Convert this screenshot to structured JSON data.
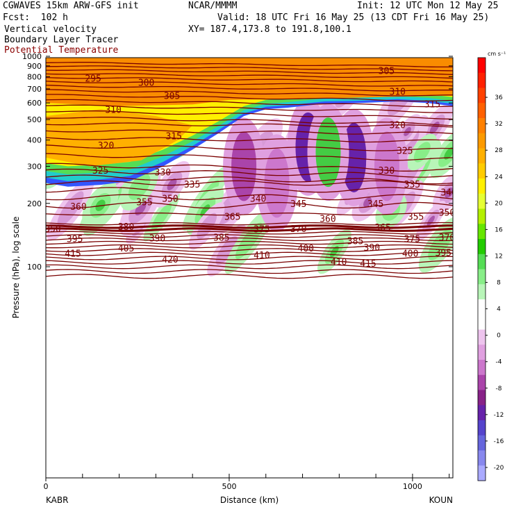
{
  "header": {
    "title_left": "CGWAVES 15km ARW-GFS init",
    "forecast": "Fcst:  102 h",
    "source": "NCAR/MMMM",
    "init": "Init: 12 UTC Mon 12 May 25",
    "valid": "Valid: 18 UTC Fri 16 May 25 (13 CDT Fri 16 May 25)",
    "xy": "XY= 187.4,173.8 to 191.8,100.1",
    "field1": "Vertical velocity",
    "field2": "Boundary Layer Tracer",
    "field3": "Potential Temperature"
  },
  "colors": {
    "theta_contour": "#7a0000",
    "field3_text": "#8b0000",
    "terrain_fill": "#f98c00"
  },
  "chart_data": {
    "type": "heatmap",
    "title": "CGWAVES 15km ARW-GFS init",
    "xlabel": "Distance (km)",
    "ylabel": "Pressure (hPa), log scale",
    "x_range": [
      0,
      1110
    ],
    "y_range_hpa": [
      1000,
      10
    ],
    "y_scale": "log",
    "x_ticks": [
      "0",
      "500",
      "1000"
    ],
    "x_tick_values": [
      0,
      500,
      1000
    ],
    "y_ticks": [
      "100",
      "200",
      "300",
      "400",
      "500",
      "600",
      "700",
      "800",
      "900",
      "1000"
    ],
    "y_tick_values": [
      100,
      200,
      300,
      400,
      500,
      600,
      700,
      800,
      900,
      1000
    ],
    "endpoints": {
      "left": "KABR",
      "right": "KOUN"
    },
    "colorbar": {
      "units": "cm s⁻¹",
      "labels": [
        "36",
        "32",
        "28",
        "24",
        "20",
        "16",
        "12",
        "8",
        "4",
        "0",
        "-4",
        "-8",
        "-12",
        "-16",
        "-20"
      ],
      "label_values": [
        36,
        32,
        28,
        24,
        20,
        16,
        12,
        8,
        4,
        0,
        -4,
        -8,
        -12,
        -16,
        -20
      ],
      "colors": [
        "#ff0000",
        "#ff2000",
        "#ff4000",
        "#ff6000",
        "#ff8000",
        "#fc9a00",
        "#ffb000",
        "#ffcc00",
        "#fff000",
        "#e6ff33",
        "#b4f000",
        "#66e600",
        "#22cc00",
        "#55dd55",
        "#88ee88",
        "#b8f5b8",
        "#ffffff",
        "#ffffff",
        "#eec4ee",
        "#e0a0e0",
        "#cc77cc",
        "#aa44aa",
        "#882288",
        "#6622aa",
        "#5544cc",
        "#6666dd",
        "#8888ee",
        "#aaaaff"
      ]
    },
    "contour_labels": [
      {
        "v": "415",
        "x": 55,
        "p": 115
      },
      {
        "v": "420",
        "x": 320,
        "p": 108
      },
      {
        "v": "410",
        "x": 570,
        "p": 113
      },
      {
        "v": "410",
        "x": 780,
        "p": 105
      },
      {
        "v": "415",
        "x": 860,
        "p": 103
      },
      {
        "v": "405",
        "x": 200,
        "p": 122
      },
      {
        "v": "400",
        "x": 690,
        "p": 122
      },
      {
        "v": "390",
        "x": 870,
        "p": 123
      },
      {
        "v": "400",
        "x": 975,
        "p": 115
      },
      {
        "v": "395",
        "x": 1065,
        "p": 116
      },
      {
        "v": "395",
        "x": 60,
        "p": 135
      },
      {
        "v": "390",
        "x": 285,
        "p": 136
      },
      {
        "v": "385",
        "x": 460,
        "p": 137
      },
      {
        "v": "385",
        "x": 825,
        "p": 132
      },
      {
        "v": "375",
        "x": 980,
        "p": 135
      },
      {
        "v": "370",
        "x": 1075,
        "p": 137
      },
      {
        "v": "380",
        "x": 200,
        "p": 154
      },
      {
        "v": "375",
        "x": 570,
        "p": 150
      },
      {
        "v": "370",
        "x": 670,
        "p": 151
      },
      {
        "v": "365",
        "x": 900,
        "p": 153
      },
      {
        "v": "350",
        "x": 0,
        "p": 151
      },
      {
        "v": "365",
        "x": 490,
        "p": 172
      },
      {
        "v": "360",
        "x": 750,
        "p": 168
      },
      {
        "v": "355",
        "x": 990,
        "p": 172
      },
      {
        "v": "350",
        "x": 1075,
        "p": 180
      },
      {
        "v": "360",
        "x": 70,
        "p": 192
      },
      {
        "v": "355",
        "x": 250,
        "p": 202
      },
      {
        "v": "350",
        "x": 320,
        "p": 210
      },
      {
        "v": "340",
        "x": 560,
        "p": 210
      },
      {
        "v": "345",
        "x": 670,
        "p": 198
      },
      {
        "v": "345",
        "x": 880,
        "p": 198
      },
      {
        "v": "340",
        "x": 1080,
        "p": 225
      },
      {
        "v": "335",
        "x": 380,
        "p": 245
      },
      {
        "v": "335",
        "x": 980,
        "p": 245
      },
      {
        "v": "325",
        "x": 130,
        "p": 285
      },
      {
        "v": "330",
        "x": 300,
        "p": 280
      },
      {
        "v": "330",
        "x": 910,
        "p": 285
      },
      {
        "v": "320",
        "x": 145,
        "p": 375
      },
      {
        "v": "325",
        "x": 960,
        "p": 355
      },
      {
        "v": "315",
        "x": 330,
        "p": 415
      },
      {
        "v": "320",
        "x": 940,
        "p": 470
      },
      {
        "v": "310",
        "x": 165,
        "p": 555
      },
      {
        "v": "315",
        "x": 1035,
        "p": 590
      },
      {
        "v": "305",
        "x": 325,
        "p": 645
      },
      {
        "v": "310",
        "x": 940,
        "p": 675
      },
      {
        "v": "295",
        "x": 110,
        "p": 780
      },
      {
        "v": "300",
        "x": 255,
        "p": 745
      },
      {
        "v": "305",
        "x": 910,
        "p": 850
      }
    ]
  }
}
